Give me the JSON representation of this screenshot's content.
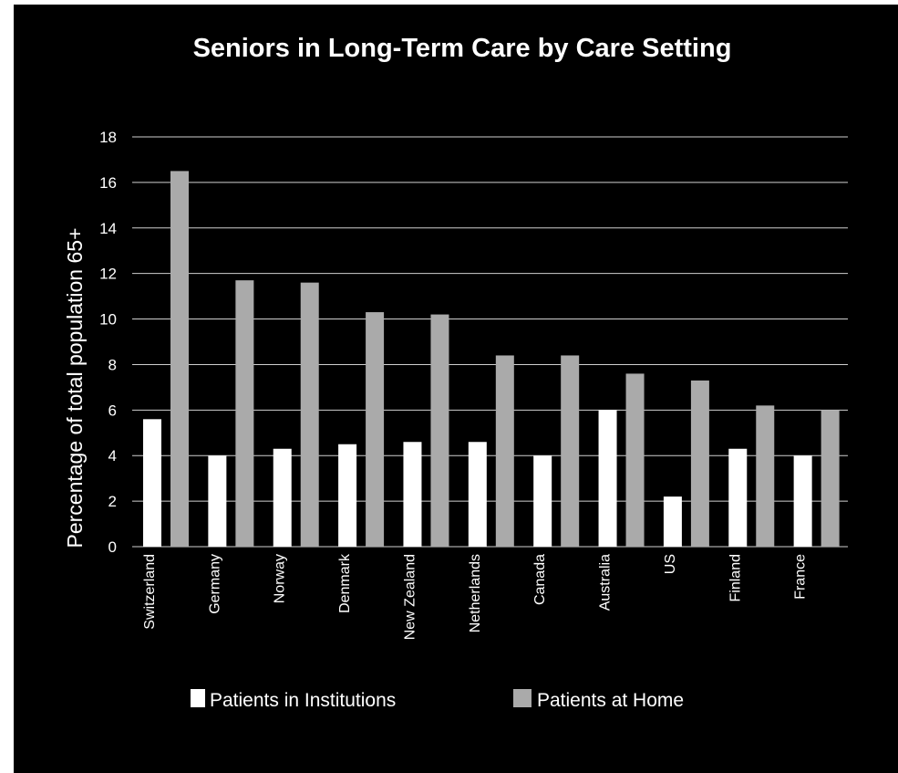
{
  "chart_data": {
    "type": "bar",
    "title": "Seniors in Long-Term Care by Care Setting",
    "xlabel": "",
    "ylabel": "Percentage of total population 65+",
    "ylim": [
      0,
      18
    ],
    "yticks": [
      0,
      2,
      4,
      6,
      8,
      10,
      12,
      14,
      16,
      18
    ],
    "grid": true,
    "legend_position": "bottom",
    "categories": [
      "Switzerland",
      "Germany",
      "Norway",
      "Denmark",
      "New Zealand",
      "Netherlands",
      "Canada",
      "Australia",
      "US",
      "Finland",
      "France"
    ],
    "series": [
      {
        "name": "Patients in Institutions",
        "color": "#ffffff",
        "values": [
          5.6,
          4.0,
          4.3,
          4.5,
          4.6,
          4.6,
          4.0,
          6.0,
          2.2,
          4.3,
          4.0
        ]
      },
      {
        "name": "Patients at Home",
        "color": "#aaaaaa",
        "values": [
          16.5,
          11.7,
          11.6,
          10.3,
          10.2,
          8.4,
          8.4,
          7.6,
          7.3,
          6.2,
          6.0
        ]
      }
    ]
  },
  "colors": {
    "background": "#000000",
    "gridline": "#cfcfcf",
    "text": "#ffffff"
  }
}
